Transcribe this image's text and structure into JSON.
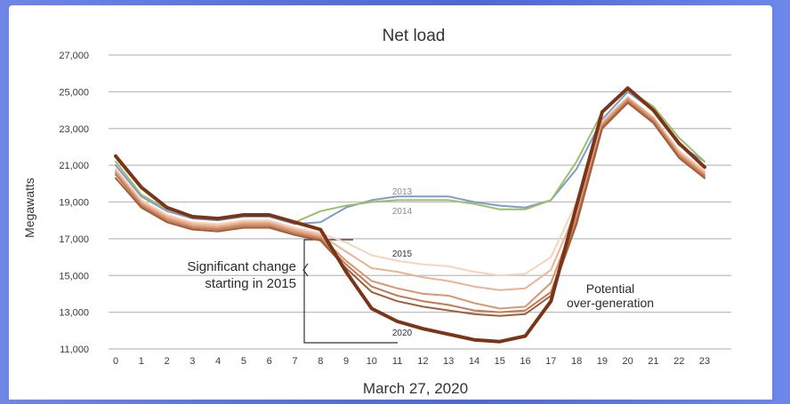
{
  "colors": {
    "grid": "#bdbdbd",
    "axis_text": "#3a3a3a",
    "bracket": "#333333",
    "series": [
      "#7b9ccf",
      "#9fbd6a",
      "#f6d3bf",
      "#e9b496",
      "#d89670",
      "#c17a55",
      "#a15d3c",
      "#7a3518"
    ]
  },
  "chart_data": {
    "type": "line",
    "title": "Net load",
    "xlabel": "March 27, 2020",
    "ylabel": "Megawatts",
    "ylim": [
      11000,
      27000
    ],
    "yticks": [
      11000,
      13000,
      15000,
      17000,
      19000,
      21000,
      23000,
      25000,
      27000
    ],
    "ytick_labels": [
      "11,000",
      "13,000",
      "15,000",
      "17,000",
      "19,000",
      "21,000",
      "23,000",
      "25,000",
      "27,000"
    ],
    "x": [
      0,
      1,
      2,
      3,
      4,
      5,
      6,
      7,
      8,
      9,
      10,
      11,
      12,
      13,
      14,
      15,
      16,
      17,
      18,
      19,
      20,
      21,
      22,
      23
    ],
    "grid": "horizontal",
    "series": [
      {
        "name": "2013",
        "values": [
          21000,
          19300,
          18500,
          18100,
          18000,
          18200,
          18200,
          17800,
          17900,
          18700,
          19100,
          19300,
          19300,
          19300,
          19000,
          18800,
          18700,
          19100,
          20800,
          23500,
          25000,
          24000,
          22100,
          21200
        ]
      },
      {
        "name": "2014",
        "values": [
          21200,
          19400,
          18600,
          18200,
          18100,
          18300,
          18300,
          17900,
          18500,
          18800,
          19000,
          19100,
          19100,
          19100,
          18900,
          18600,
          18600,
          19100,
          21200,
          23900,
          25100,
          24200,
          22500,
          21200
        ]
      },
      {
        "name": "2015",
        "values": [
          20800,
          19100,
          18300,
          17900,
          17800,
          18000,
          18000,
          17600,
          17300,
          16800,
          16100,
          15800,
          15600,
          15500,
          15200,
          15000,
          15100,
          16000,
          19000,
          23400,
          24700,
          23600,
          21800,
          20700
        ]
      },
      {
        "name": "",
        "values": [
          20700,
          19000,
          18200,
          17800,
          17700,
          17900,
          17900,
          17500,
          17200,
          16300,
          15400,
          15200,
          14900,
          14700,
          14400,
          14200,
          14300,
          15300,
          18600,
          23300,
          24700,
          23600,
          21700,
          20600
        ]
      },
      {
        "name": "",
        "values": [
          20600,
          18900,
          18100,
          17700,
          17600,
          17800,
          17800,
          17400,
          17100,
          15800,
          14700,
          14300,
          14000,
          13900,
          13500,
          13200,
          13300,
          14600,
          18200,
          23200,
          24600,
          23500,
          21600,
          20500
        ]
      },
      {
        "name": "",
        "values": [
          20500,
          18800,
          18000,
          17600,
          17500,
          17700,
          17700,
          17300,
          17000,
          15600,
          14400,
          13900,
          13600,
          13400,
          13100,
          13000,
          13100,
          14100,
          18000,
          23100,
          24500,
          23400,
          21500,
          20400
        ]
      },
      {
        "name": "",
        "values": [
          20300,
          18700,
          17900,
          17500,
          17400,
          17600,
          17600,
          17200,
          16900,
          15400,
          14100,
          13600,
          13300,
          13100,
          12900,
          12800,
          12900,
          13900,
          17800,
          23000,
          24400,
          23300,
          21400,
          20300
        ]
      },
      {
        "name": "2020",
        "values": [
          21500,
          19800,
          18700,
          18200,
          18100,
          18300,
          18300,
          17900,
          17500,
          15200,
          13200,
          12500,
          12100,
          11800,
          11500,
          11400,
          11700,
          13600,
          18800,
          23900,
          25200,
          24000,
          22200,
          20900
        ]
      }
    ],
    "series_labels": [
      "2013",
      "2014",
      "2015",
      "2020"
    ],
    "annotations": [
      "Significant change",
      "starting in 2015",
      "Potential",
      "over-generation"
    ]
  }
}
